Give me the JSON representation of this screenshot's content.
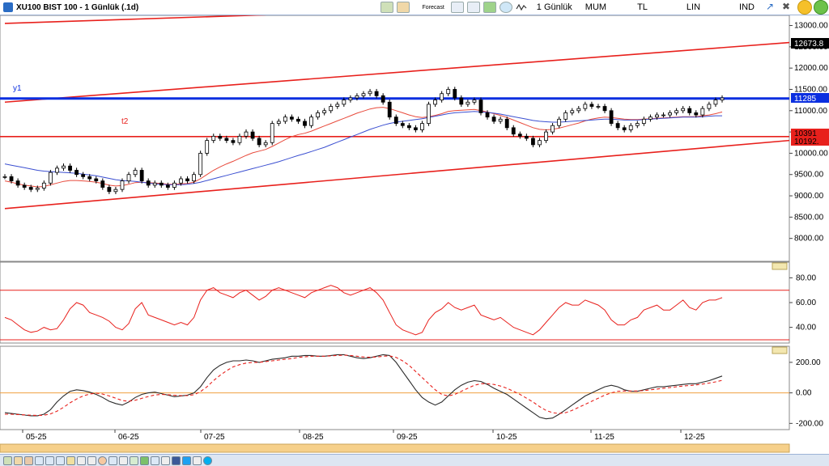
{
  "window": {
    "title": "XU100 BIST 100 - 1 Günlük (.1d)"
  },
  "toolbar": {
    "forecast_label": "Forecast",
    "period_label": "1 Günlük",
    "chart_type_label": "MUM",
    "currency_label": "TL",
    "scale_label": "LIN",
    "indicator_label": "IND"
  },
  "annotations": {
    "y1": "y1",
    "t2": "t2"
  },
  "price_tags": {
    "last_a": "12673.8",
    "y1_level": "11285",
    "t_level_a": "10391",
    "t_level_b": "10192."
  },
  "colors": {
    "bg": "#ffffff",
    "trend": "#e8201c",
    "ma_fast": "#e84a3c",
    "ma_slow": "#3b4fd1",
    "support": "#e8201c",
    "resistance": "#0b2fe0",
    "macd": "#2b2b2b",
    "signal": "#e8201c",
    "zero": "#f0a040",
    "rsi": "#e8201c"
  },
  "icons": [
    "bar-chart-icon",
    "line-chart-icon",
    "forecast-icon",
    "grid-icon",
    "table-icon",
    "pen-icon",
    "settings-icon",
    "wave-icon",
    "arrow-icon",
    "tools-icon",
    "minimize-icon",
    "maximize-icon"
  ],
  "chart_data": [
    {
      "type": "candlestick",
      "title": "XU100 BIST 100 - 1 Günlük (.1d)",
      "ylim": [
        7500,
        13200
      ],
      "y_ticks": [
        "13000.00",
        "12500.00",
        "12000.00",
        "11500.00",
        "11000.00",
        "10500.00",
        "10000.00",
        "9500.00",
        "9000.00",
        "8500.00",
        "8000.00"
      ],
      "x_ticks": [
        "05-25",
        "06-25",
        "07-25",
        "08-25",
        "09-25",
        "10-25",
        "11-25",
        "12-25"
      ],
      "close": [
        9450,
        9350,
        9250,
        9200,
        9150,
        9180,
        9300,
        9550,
        9650,
        9700,
        9600,
        9500,
        9450,
        9400,
        9350,
        9200,
        9100,
        9150,
        9350,
        9500,
        9600,
        9350,
        9250,
        9300,
        9250,
        9200,
        9300,
        9400,
        9350,
        9500,
        10000,
        10300,
        10400,
        10350,
        10300,
        10250,
        10400,
        10500,
        10350,
        10200,
        10250,
        10700,
        10750,
        10850,
        10800,
        10750,
        10650,
        10850,
        10950,
        11000,
        11100,
        11150,
        11250,
        11300,
        11350,
        11400,
        11450,
        11350,
        11200,
        10850,
        10700,
        10650,
        10600,
        10550,
        10700,
        11150,
        11250,
        11400,
        11500,
        11300,
        11150,
        11200,
        11250,
        10950,
        10850,
        10750,
        10800,
        10600,
        10450,
        10400,
        10350,
        10200,
        10300,
        10500,
        10650,
        10800,
        10950,
        11000,
        11050,
        11150,
        11100,
        11100,
        11000,
        10700,
        10600,
        10550,
        10650,
        10700,
        10800,
        10850,
        10900,
        10900,
        10950,
        11000,
        11050,
        10950,
        10900,
        11050,
        11150,
        11250,
        11300
      ],
      "series": [
        {
          "name": "MA fast",
          "values": [
            9350,
            9320,
            9280,
            9250,
            9230,
            9210,
            9220,
            9260,
            9300,
            9340,
            9360,
            9360,
            9350,
            9340,
            9320,
            9290,
            9250,
            9230,
            9240,
            9270,
            9310,
            9320,
            9310,
            9300,
            9290,
            9270,
            9270,
            9280,
            9290,
            9320,
            9400,
            9500,
            9600,
            9680,
            9750,
            9810,
            9880,
            9950,
            10010,
            10050,
            10090,
            10160,
            10240,
            10320,
            10390,
            10440,
            10470,
            10520,
            10580,
            10640,
            10700,
            10760,
            10820,
            10880,
            10940,
            10990,
            11040,
            11070,
            11080,
            11050,
            11000,
            10950,
            10900,
            10860,
            10840,
            10860,
            10890,
            10930,
            10980,
            11000,
            11010,
            11020,
            11030,
            11000,
            10970,
            10930,
            10890,
            10840,
            10780,
            10720,
            10660,
            10600,
            10560,
            10550,
            10560,
            10590,
            10630,
            10670,
            10710,
            10760,
            10800,
            10830,
            10850,
            10840,
            10820,
            10800,
            10790,
            10790,
            10800,
            10810,
            10820,
            10830,
            10840,
            10850,
            10860,
            10860,
            10860,
            10880,
            10900,
            10930,
            10970
          ]
        },
        {
          "name": "MA slow",
          "values": [
            9750,
            9720,
            9690,
            9660,
            9630,
            9600,
            9580,
            9570,
            9560,
            9550,
            9540,
            9530,
            9510,
            9490,
            9470,
            9440,
            9410,
            9380,
            9360,
            9350,
            9340,
            9320,
            9300,
            9280,
            9270,
            9260,
            9260,
            9260,
            9270,
            9290,
            9320,
            9360,
            9400,
            9440,
            9480,
            9520,
            9560,
            9600,
            9640,
            9680,
            9720,
            9760,
            9800,
            9850,
            9900,
            9950,
            9990,
            10040,
            10090,
            10140,
            10200,
            10260,
            10320,
            10380,
            10440,
            10500,
            10560,
            10610,
            10660,
            10700,
            10730,
            10750,
            10770,
            10790,
            10810,
            10840,
            10870,
            10900,
            10930,
            10950,
            10960,
            10970,
            10980,
            10970,
            10960,
            10940,
            10920,
            10890,
            10860,
            10830,
            10800,
            10770,
            10750,
            10740,
            10730,
            10730,
            10740,
            10750,
            10760,
            10770,
            10780,
            10790,
            10800,
            10800,
            10790,
            10780,
            10780,
            10780,
            10790,
            10800,
            10810,
            10820,
            10830,
            10840,
            10850,
            10850,
            10850,
            10860,
            10870,
            10880,
            10880
          ]
        }
      ],
      "trendlines": [
        {
          "name": "upper channel",
          "from": [
            0,
            11200
          ],
          "to": [
            111,
            12600
          ]
        },
        {
          "name": "lower channel",
          "from": [
            0,
            8700
          ],
          "to": [
            111,
            10300
          ]
        },
        {
          "name": "top line",
          "from": [
            0,
            13050
          ],
          "to": [
            40,
            13250
          ]
        }
      ],
      "levels": [
        {
          "name": "y1",
          "value": 11285,
          "color": "#0b2fe0"
        },
        {
          "name": "t2",
          "value": 10391,
          "color": "#e8201c"
        }
      ]
    },
    {
      "type": "line",
      "name": "RSI",
      "ylim": [
        28,
        92
      ],
      "y_ticks": [
        "80.00",
        "60.00",
        "40.00"
      ],
      "levels": [
        70,
        30
      ],
      "values": [
        48,
        46,
        42,
        38,
        36,
        37,
        40,
        38,
        39,
        46,
        55,
        60,
        58,
        52,
        50,
        48,
        45,
        40,
        38,
        43,
        55,
        60,
        50,
        48,
        46,
        44,
        42,
        44,
        42,
        48,
        62,
        70,
        72,
        68,
        66,
        64,
        68,
        70,
        66,
        62,
        65,
        70,
        72,
        70,
        68,
        66,
        64,
        68,
        70,
        72,
        74,
        72,
        68,
        66,
        68,
        70,
        72,
        68,
        62,
        52,
        42,
        38,
        36,
        34,
        36,
        46,
        52,
        55,
        60,
        56,
        54,
        56,
        58,
        50,
        48,
        46,
        48,
        44,
        40,
        38,
        36,
        34,
        38,
        44,
        50,
        56,
        60,
        58,
        58,
        62,
        60,
        58,
        54,
        46,
        42,
        42,
        46,
        48,
        54,
        56,
        58,
        54,
        54,
        58,
        62,
        56,
        54,
        60,
        62,
        62,
        64
      ]
    },
    {
      "type": "line",
      "name": "MACD",
      "ylim": [
        -230,
        300
      ],
      "y_ticks": [
        "200.00",
        "0.00",
        "-200.00"
      ],
      "series": [
        {
          "name": "MACD",
          "values": [
            -130,
            -135,
            -140,
            -145,
            -150,
            -150,
            -140,
            -110,
            -60,
            -20,
            10,
            20,
            15,
            5,
            -10,
            -30,
            -55,
            -70,
            -80,
            -60,
            -30,
            -10,
            0,
            5,
            -5,
            -15,
            -25,
            -20,
            -15,
            0,
            40,
            100,
            150,
            180,
            200,
            210,
            210,
            215,
            210,
            200,
            210,
            220,
            225,
            230,
            240,
            240,
            245,
            245,
            240,
            240,
            245,
            250,
            250,
            240,
            230,
            225,
            230,
            240,
            250,
            245,
            200,
            140,
            80,
            20,
            -30,
            -60,
            -80,
            -60,
            -20,
            20,
            50,
            70,
            80,
            75,
            55,
            30,
            10,
            -10,
            -40,
            -70,
            -100,
            -130,
            -160,
            -170,
            -165,
            -140,
            -110,
            -80,
            -50,
            -20,
            0,
            20,
            40,
            50,
            40,
            20,
            10,
            10,
            20,
            30,
            40,
            40,
            45,
            50,
            55,
            60,
            60,
            70,
            80,
            95,
            110
          ]
        },
        {
          "name": "Signal",
          "values": [
            -140,
            -140,
            -142,
            -144,
            -146,
            -148,
            -146,
            -138,
            -120,
            -95,
            -65,
            -40,
            -20,
            -8,
            -2,
            -8,
            -20,
            -35,
            -50,
            -55,
            -48,
            -36,
            -24,
            -14,
            -10,
            -12,
            -16,
            -18,
            -18,
            -12,
            8,
            40,
            80,
            115,
            145,
            170,
            185,
            195,
            200,
            200,
            205,
            210,
            215,
            220,
            225,
            232,
            236,
            240,
            240,
            240,
            242,
            245,
            247,
            245,
            240,
            235,
            233,
            235,
            240,
            242,
            232,
            210,
            180,
            140,
            100,
            60,
            20,
            -10,
            -20,
            -10,
            10,
            30,
            50,
            60,
            60,
            55,
            45,
            30,
            10,
            -10,
            -35,
            -60,
            -90,
            -115,
            -130,
            -135,
            -130,
            -115,
            -95,
            -75,
            -55,
            -35,
            -15,
            0,
            10,
            12,
            12,
            12,
            15,
            20,
            25,
            30,
            35,
            40,
            45,
            48,
            52,
            58,
            64,
            72,
            82
          ]
        }
      ],
      "zero_line": 0
    }
  ]
}
